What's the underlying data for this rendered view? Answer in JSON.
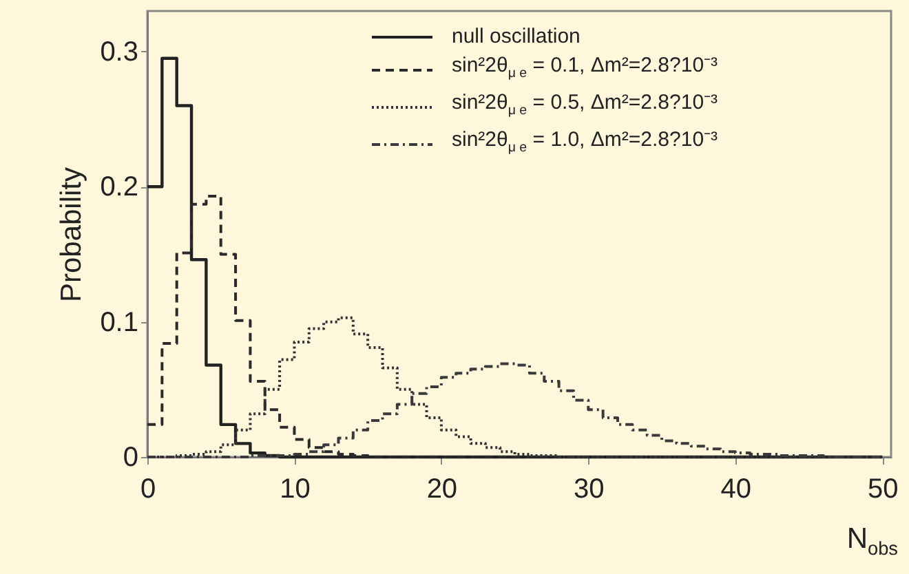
{
  "chart_data": {
    "type": "histogram",
    "xlabel": "N$_{obs}$",
    "ylabel": "Probability",
    "bins": [
      0,
      1,
      2,
      3,
      4,
      5,
      6,
      7,
      8,
      9,
      10,
      11,
      12,
      13,
      14,
      15,
      16,
      17,
      18,
      19,
      20,
      21,
      22,
      23,
      24,
      25,
      26,
      27,
      28,
      29,
      30,
      31,
      32,
      33,
      34,
      35,
      36,
      37,
      38,
      39,
      40,
      41,
      42,
      43,
      44,
      45,
      46,
      47,
      48,
      49,
      50
    ],
    "xlim": [
      0,
      50.6
    ],
    "xticks": [
      0,
      10,
      20,
      30,
      40,
      50
    ],
    "ylim": [
      0,
      0.33
    ],
    "yticks": [
      0,
      0.1,
      0.2,
      0.3
    ],
    "grid": false,
    "legend": "top right",
    "series": [
      {
        "name": "null oscillation",
        "color": "#222222",
        "line_style": "solid",
        "values": [
          0.2,
          0.295,
          0.26,
          0.146,
          0.068,
          0.024,
          0.01,
          0.003,
          0.001,
          0,
          0,
          0,
          0,
          0,
          0,
          0,
          0,
          0,
          0,
          0,
          0,
          0,
          0,
          0,
          0,
          0,
          0,
          0,
          0,
          0,
          0,
          0,
          0,
          0,
          0,
          0,
          0,
          0,
          0,
          0,
          0,
          0,
          0,
          0,
          0,
          0,
          0,
          0,
          0,
          0
        ]
      },
      {
        "name": "sin²2θ$_{μ e}$ = 0.1,  Δm²=2.8?10⁻³",
        "color": "#2a2a2a",
        "line_style": "dashed",
        "values": [
          0.024,
          0.084,
          0.151,
          0.187,
          0.193,
          0.15,
          0.101,
          0.056,
          0.035,
          0.022,
          0.013,
          0.007,
          0.004,
          0.002,
          0.001,
          0,
          0,
          0,
          0,
          0,
          0,
          0,
          0,
          0,
          0,
          0,
          0,
          0,
          0,
          0,
          0,
          0,
          0,
          0,
          0,
          0,
          0,
          0,
          0,
          0,
          0,
          0,
          0,
          0,
          0,
          0,
          0,
          0,
          0,
          0
        ]
      },
      {
        "name": "sin²2θ$_{μ e}$ = 0.5,  Δm²=2.8?10⁻³",
        "color": "#333333",
        "line_style": "dotted",
        "values": [
          0,
          0,
          0.001,
          0.002,
          0.004,
          0.009,
          0.02,
          0.032,
          0.05,
          0.072,
          0.085,
          0.095,
          0.1,
          0.103,
          0.091,
          0.081,
          0.066,
          0.05,
          0.039,
          0.029,
          0.02,
          0.015,
          0.01,
          0.007,
          0.004,
          0.002,
          0.001,
          0.001,
          0,
          0,
          0,
          0,
          0,
          0,
          0,
          0,
          0,
          0,
          0,
          0,
          0,
          0,
          0,
          0,
          0,
          0,
          0,
          0,
          0,
          0
        ]
      },
      {
        "name": "sin²2θ$_{μ e}$ = 1.0,  Δm²=2.8?10⁻³",
        "color": "#3a3a3a",
        "line_style": "dashdot",
        "values": [
          0,
          0,
          0,
          0,
          0,
          0,
          0,
          0.001,
          0.001,
          0.001,
          0.002,
          0.004,
          0.009,
          0.014,
          0.02,
          0.027,
          0.032,
          0.039,
          0.047,
          0.052,
          0.059,
          0.062,
          0.065,
          0.067,
          0.069,
          0.068,
          0.062,
          0.056,
          0.049,
          0.042,
          0.035,
          0.029,
          0.024,
          0.02,
          0.016,
          0.012,
          0.01,
          0.008,
          0.006,
          0.004,
          0.003,
          0.002,
          0.002,
          0.001,
          0.001,
          0.001,
          0,
          0,
          0,
          0
        ]
      }
    ]
  }
}
